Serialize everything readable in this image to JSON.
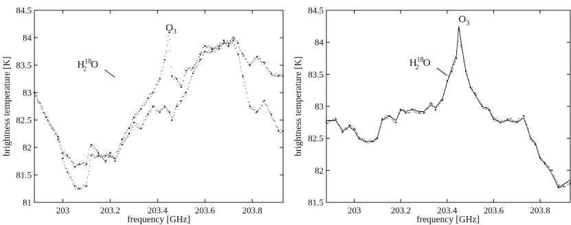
{
  "chart_data": [
    {
      "type": "scatter",
      "xlabel": "frequency [GHz]",
      "ylabel": "brightness temperature [K]",
      "xlim": [
        202.88,
        203.93
      ],
      "ylim": [
        81,
        84.5
      ],
      "xticks": [
        203,
        203.2,
        203.4,
        203.6,
        203.8
      ],
      "xtick_labels": [
        "203",
        "203.2",
        "203.4",
        "203.6",
        "203.8"
      ],
      "yticks": [
        81,
        81.5,
        82,
        82.5,
        83,
        83.5,
        84,
        84.5
      ],
      "ytick_labels": [
        "81",
        "81.5",
        "82",
        "82.5",
        "83",
        "83.5",
        "84",
        "84.5"
      ],
      "grid": false,
      "annotations": [
        {
          "main": "O",
          "sub": "3",
          "sup": "",
          "x": 203.44,
          "y": 84.05
        },
        {
          "main": "H",
          "sub": "2",
          "sup": "18",
          "after": "O",
          "x": 203.22,
          "y": 83.28
        }
      ],
      "series": [
        {
          "style": "dots",
          "x": [
            202.88,
            202.93,
            202.98,
            203.0,
            203.02,
            203.05,
            203.07,
            203.1,
            203.12,
            203.15,
            203.18,
            203.2,
            203.22,
            203.25,
            203.28,
            203.3,
            203.33,
            203.36,
            203.38,
            203.41,
            203.43,
            203.45,
            203.46,
            203.48,
            203.5,
            203.52,
            203.55,
            203.58,
            203.6,
            203.63,
            203.66,
            203.68,
            203.7,
            203.72,
            203.74,
            203.76,
            203.79,
            203.82,
            203.85,
            203.88,
            203.91,
            203.93
          ],
          "y": [
            83.0,
            82.55,
            82.2,
            81.9,
            81.85,
            81.65,
            81.7,
            81.7,
            82.05,
            81.9,
            81.75,
            81.9,
            81.8,
            82.15,
            82.35,
            82.55,
            82.7,
            82.9,
            83.0,
            83.25,
            83.6,
            84.1,
            83.3,
            83.25,
            83.1,
            83.4,
            83.45,
            83.7,
            83.85,
            83.8,
            83.85,
            83.95,
            83.9,
            84.0,
            83.9,
            83.7,
            83.5,
            83.65,
            83.55,
            83.35,
            83.3,
            83.3
          ]
        },
        {
          "style": "dots",
          "x": [
            202.88,
            202.93,
            202.98,
            203.0,
            203.02,
            203.05,
            203.07,
            203.1,
            203.12,
            203.15,
            203.18,
            203.2,
            203.22,
            203.25,
            203.28,
            203.3,
            203.33,
            203.36,
            203.38,
            203.41,
            203.43,
            203.45,
            203.46,
            203.48,
            203.5,
            203.52,
            203.55,
            203.58,
            203.6,
            203.63,
            203.66,
            203.68,
            203.7,
            203.72,
            203.74,
            203.76,
            203.79,
            203.82,
            203.85,
            203.88,
            203.91,
            203.93
          ],
          "y": [
            83.0,
            82.55,
            82.15,
            81.8,
            81.55,
            81.3,
            81.25,
            81.3,
            81.85,
            81.85,
            81.85,
            81.85,
            81.75,
            82.05,
            82.25,
            82.45,
            82.35,
            82.6,
            82.75,
            82.65,
            82.75,
            82.65,
            82.5,
            82.75,
            82.85,
            83.0,
            83.35,
            83.6,
            83.75,
            83.75,
            83.8,
            83.9,
            83.85,
            83.95,
            83.7,
            83.3,
            82.75,
            82.65,
            82.85,
            82.6,
            82.3,
            82.3
          ]
        }
      ]
    },
    {
      "type": "scatter",
      "xlabel": "frequency [GHz]",
      "ylabel": "brightness temperature [K]",
      "xlim": [
        202.88,
        203.93
      ],
      "ylim": [
        81.5,
        84.5
      ],
      "xticks": [
        203,
        203.2,
        203.4,
        203.6,
        203.8
      ],
      "xtick_labels": [
        "203",
        "203.2",
        "203.4",
        "203.6",
        "203.8"
      ],
      "yticks": [
        81.5,
        82,
        82.5,
        83,
        83.5,
        84,
        84.5
      ],
      "ytick_labels": [
        "81.5",
        "82",
        "82.5",
        "83",
        "83.5",
        "84",
        "84.5"
      ],
      "grid": false,
      "annotations": [
        {
          "main": "O",
          "sub": "3",
          "sup": "",
          "x": 203.455,
          "y": 84.25
        },
        {
          "main": "H",
          "sub": "2",
          "sup": "18",
          "after": "O",
          "x": 203.4,
          "y": 83.48
        }
      ],
      "series": [
        {
          "style": "dots",
          "x": [
            202.88,
            202.92,
            202.95,
            202.98,
            203.0,
            203.02,
            203.05,
            203.08,
            203.1,
            203.12,
            203.15,
            203.18,
            203.2,
            203.22,
            203.25,
            203.28,
            203.3,
            203.33,
            203.35,
            203.38,
            203.4,
            203.42,
            203.44,
            203.45,
            203.46,
            203.48,
            203.5,
            203.52,
            203.55,
            203.58,
            203.6,
            203.63,
            203.66,
            203.7,
            203.73,
            203.76,
            203.78,
            203.8,
            203.82,
            203.85,
            203.88,
            203.9,
            203.93
          ],
          "y": [
            82.75,
            82.8,
            82.6,
            82.7,
            82.65,
            82.5,
            82.45,
            82.45,
            82.5,
            82.8,
            82.85,
            82.75,
            82.95,
            82.9,
            82.95,
            82.9,
            82.9,
            83.05,
            82.95,
            83.1,
            83.4,
            83.55,
            83.75,
            84.2,
            83.95,
            83.55,
            83.3,
            83.2,
            83.0,
            82.95,
            82.8,
            82.75,
            82.8,
            82.75,
            82.85,
            82.5,
            82.4,
            82.2,
            82.1,
            82.0,
            81.75,
            81.75,
            81.8
          ]
        },
        {
          "style": "line",
          "x": [
            202.88,
            202.92,
            202.95,
            202.98,
            203.0,
            203.02,
            203.05,
            203.08,
            203.1,
            203.12,
            203.15,
            203.18,
            203.2,
            203.22,
            203.25,
            203.28,
            203.3,
            203.33,
            203.35,
            203.38,
            203.4,
            203.42,
            203.44,
            203.45,
            203.46,
            203.48,
            203.5,
            203.52,
            203.55,
            203.58,
            203.6,
            203.63,
            203.66,
            203.7,
            203.73,
            203.76,
            203.78,
            203.8,
            203.82,
            203.85,
            203.88,
            203.9,
            203.93
          ],
          "y": [
            82.78,
            82.78,
            82.62,
            82.68,
            82.62,
            82.5,
            82.45,
            82.45,
            82.52,
            82.78,
            82.85,
            82.78,
            82.95,
            82.92,
            82.95,
            82.92,
            82.92,
            83.02,
            82.98,
            83.12,
            83.38,
            83.6,
            83.8,
            84.25,
            84.0,
            83.55,
            83.3,
            83.18,
            83.0,
            82.95,
            82.8,
            82.75,
            82.78,
            82.75,
            82.82,
            82.5,
            82.42,
            82.18,
            82.12,
            81.95,
            81.72,
            81.78,
            81.85
          ]
        }
      ]
    }
  ]
}
